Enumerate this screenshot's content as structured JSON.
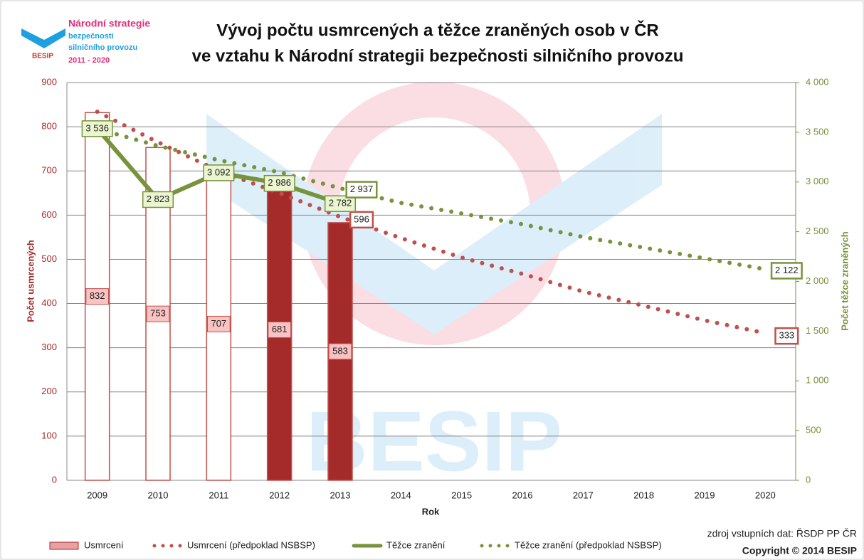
{
  "logo": {
    "lines": [
      "Národní strategie",
      "bezpečnosti",
      "silničního provozu",
      "2011 - 2020"
    ],
    "brand": "BESIP"
  },
  "source": "zdroj vstupních dat: ŘSDP PP ČR",
  "copyright": "Copyright © 2014 BESIP",
  "chart_data": {
    "type": "bar-line",
    "title": [
      "Vývoj počtu usmrcených a těžce zraněných osob v ČR",
      "ve vztahu k Národní strategii bezpečnosti silničního provozu"
    ],
    "x_label": "Rok",
    "y_label": "Počet usmrcených",
    "y2_label": "Počet těžce zraněných",
    "categories": [
      "2009",
      "2010",
      "2011",
      "2012",
      "2013",
      "2014",
      "2015",
      "2016",
      "2017",
      "2018",
      "2019",
      "2020"
    ],
    "ylim": [
      0,
      900
    ],
    "yticks": [
      0,
      100,
      200,
      300,
      400,
      500,
      600,
      700,
      800,
      900
    ],
    "y2lim": [
      0,
      4000
    ],
    "y2ticks": [
      {
        "value": 0,
        "label": "0"
      },
      {
        "value": 500,
        "label": "500"
      },
      {
        "value": 1000,
        "label": "1 000"
      },
      {
        "value": 1500,
        "label": "1 500"
      },
      {
        "value": 2000,
        "label": "2 000"
      },
      {
        "value": 2500,
        "label": "2 500"
      },
      {
        "value": 3000,
        "label": "3 000"
      },
      {
        "value": 3500,
        "label": "3 500"
      },
      {
        "value": 4000,
        "label": "4 000"
      }
    ],
    "grid": true,
    "series": [
      {
        "name": "Usmrcení",
        "kind": "bar",
        "color": "#c0504d",
        "fill_colors": [
          "#ffffff",
          "#ffffff",
          "#ffffff",
          "#a52a2a",
          "#a52a2a",
          null,
          null,
          null,
          null,
          null,
          null,
          null
        ],
        "values": [
          832,
          753,
          707,
          681,
          583,
          null,
          null,
          null,
          null,
          null,
          null,
          null
        ]
      },
      {
        "name": "Usmrcení (předpoklad NSBSP)",
        "kind": "dotted",
        "color": "#c0504d",
        "values": [
          834,
          765,
          700,
          650,
          596,
          548,
          504,
          467,
          427,
          395,
          362,
          333
        ],
        "value_labels": [
          null,
          null,
          null,
          null,
          "596",
          null,
          null,
          null,
          null,
          null,
          null,
          "333"
        ]
      },
      {
        "name": "Těžce zranění",
        "kind": "line",
        "axis": "y2",
        "color": "#77933c",
        "values": [
          3536,
          2823,
          3092,
          2986,
          2782,
          null,
          null,
          null,
          null,
          null,
          null,
          null
        ],
        "value_labels": [
          "3 536",
          "2 823",
          "3 092",
          "2 986",
          "2 782",
          null,
          null,
          null,
          null,
          null,
          null,
          null
        ]
      },
      {
        "name": "Těžce zranění (předpoklad NSBSP)",
        "kind": "dotted",
        "axis": "y2",
        "color": "#77933c",
        "values": [
          3536,
          3363,
          3220,
          3098,
          2937,
          2790,
          2683,
          2575,
          2447,
          2340,
          2232,
          2122
        ],
        "value_labels": [
          null,
          null,
          null,
          null,
          "2 937",
          null,
          null,
          null,
          null,
          null,
          null,
          "2 122"
        ]
      }
    ]
  }
}
